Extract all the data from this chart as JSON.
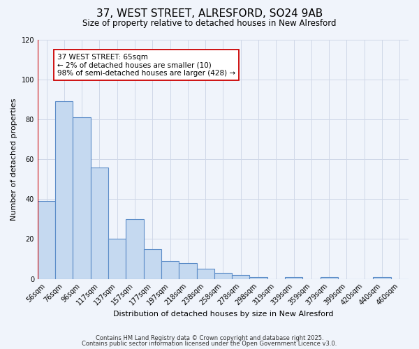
{
  "title": "37, WEST STREET, ALRESFORD, SO24 9AB",
  "subtitle": "Size of property relative to detached houses in New Alresford",
  "xlabel": "Distribution of detached houses by size in New Alresford",
  "ylabel": "Number of detached properties",
  "bin_labels": [
    "56sqm",
    "76sqm",
    "96sqm",
    "117sqm",
    "137sqm",
    "157sqm",
    "177sqm",
    "197sqm",
    "218sqm",
    "238sqm",
    "258sqm",
    "278sqm",
    "298sqm",
    "319sqm",
    "339sqm",
    "359sqm",
    "379sqm",
    "399sqm",
    "420sqm",
    "440sqm",
    "460sqm"
  ],
  "bar_heights": [
    39,
    89,
    81,
    56,
    20,
    30,
    15,
    9,
    8,
    5,
    3,
    2,
    1,
    0,
    1,
    0,
    1,
    0,
    0,
    1,
    0
  ],
  "bar_color": "#c5d9f0",
  "bar_edge_color": "#5b8cc8",
  "marker_color": "#cc0000",
  "ylim": [
    0,
    120
  ],
  "yticks": [
    0,
    20,
    40,
    60,
    80,
    100,
    120
  ],
  "annotation_title": "37 WEST STREET: 65sqm",
  "annotation_line1": "← 2% of detached houses are smaller (10)",
  "annotation_line2": "98% of semi-detached houses are larger (428) →",
  "footer1": "Contains HM Land Registry data © Crown copyright and database right 2025.",
  "footer2": "Contains public sector information licensed under the Open Government Licence v3.0.",
  "background_color": "#f0f4fb",
  "grid_color": "#d0d8e8"
}
